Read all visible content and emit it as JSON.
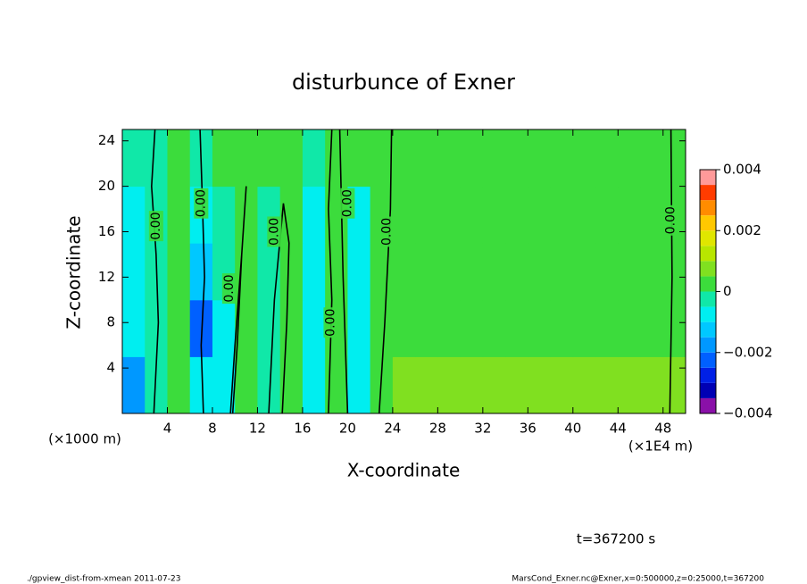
{
  "chart_data": {
    "type": "contour",
    "title": "disturbunce of Exner",
    "x_label": "X-coordinate",
    "y_label": "Z-coordinate",
    "x_unit": "(×1E4 m)",
    "y_unit": "(×1000 m)",
    "xlim": [
      0,
      50
    ],
    "ylim": [
      0,
      25
    ],
    "xticks": [
      4,
      8,
      12,
      16,
      20,
      24,
      28,
      32,
      36,
      40,
      44,
      48
    ],
    "yticks": [
      4,
      8,
      12,
      16,
      20,
      24
    ],
    "x": [
      1,
      3,
      5,
      7,
      9,
      11,
      13,
      15,
      17,
      19,
      21,
      23,
      25,
      27,
      29,
      31,
      33,
      35,
      37,
      39,
      41,
      43,
      45,
      47,
      49
    ],
    "z": [
      2.5,
      7.5,
      12.5,
      17.5,
      22.5
    ],
    "values": [
      [
        -0.0017,
        -0.0003,
        0.0002,
        -0.0008,
        -0.001,
        0.0002,
        -0.0004,
        0.0002,
        -0.0006,
        0.0002,
        -0.0007,
        0.0003,
        0.0006,
        0.0006,
        0.0006,
        0.0006,
        0.0006,
        0.0006,
        0.0006,
        0.0006,
        0.0006,
        0.0006,
        0.0006,
        0.0006,
        0.0006
      ],
      [
        -0.0008,
        -0.0003,
        0.0002,
        -0.0025,
        -0.0008,
        0.0002,
        -0.0004,
        0.0002,
        -0.0006,
        0.0002,
        -0.0007,
        0.0003,
        0.0003,
        0.0003,
        0.0003,
        0.0003,
        0.0003,
        0.0003,
        0.0003,
        0.0003,
        0.0003,
        0.0003,
        0.0003,
        0.0003,
        0.0003
      ],
      [
        -0.0007,
        -0.0003,
        0.0002,
        -0.0012,
        -0.0005,
        0.0002,
        -0.0004,
        0.0002,
        -0.0006,
        0.0002,
        -0.0007,
        0.0003,
        0.0003,
        0.0003,
        0.0003,
        0.0003,
        0.0003,
        0.0003,
        0.0003,
        0.0003,
        0.0003,
        0.0003,
        0.0003,
        0.0003,
        0.0003
      ],
      [
        -0.0006,
        -0.0003,
        0.0002,
        -0.0006,
        -0.0002,
        0.0002,
        -0.0002,
        0.0002,
        -0.0006,
        0.0002,
        -0.0007,
        0.0003,
        0.0003,
        0.0003,
        0.0003,
        0.0003,
        0.0003,
        0.0003,
        0.0003,
        0.0003,
        0.0003,
        0.0003,
        0.0003,
        0.0003,
        0.0003
      ],
      [
        -0.0002,
        -0.0003,
        0.0002,
        -0.0003,
        0.0002,
        0.0002,
        0.0002,
        0.0002,
        -0.0003,
        0.0002,
        0.0002,
        0.0003,
        0.0003,
        0.0003,
        0.0003,
        0.0003,
        0.0003,
        0.0003,
        0.0003,
        0.0003,
        0.0003,
        0.0003,
        0.0003,
        0.0003,
        0.0003
      ]
    ],
    "levels": [
      -0.004,
      -0.0035,
      -0.003,
      -0.0025,
      -0.002,
      -0.0015,
      -0.001,
      -0.0005,
      0,
      0.0005,
      0.001,
      0.0015,
      0.002,
      0.0025,
      0.003,
      0.0035,
      0.004
    ],
    "colors": [
      "#8a10a8",
      "#0000b4",
      "#0020e6",
      "#0060ff",
      "#0098ff",
      "#00c8ff",
      "#00eef0",
      "#10e8a8",
      "#3cdc3c",
      "#80e020",
      "#b8e600",
      "#e0e600",
      "#ffc800",
      "#ff8c00",
      "#ff3c00",
      "#ff9a9a"
    ],
    "colorbar_ticks": [
      {
        "value": -0.004,
        "label": "−0.004"
      },
      {
        "value": -0.002,
        "label": "−0.002"
      },
      0,
      0.002,
      0.004
    ],
    "contour_level": 0,
    "contour_lines": [
      {
        "x": [
          2.8,
          3.0,
          3.2,
          3.0,
          2.6,
          2.9
        ],
        "z": [
          0,
          4,
          8,
          14,
          20,
          25
        ]
      },
      {
        "x": [
          7.2,
          7.0,
          7.3,
          7.1,
          6.9
        ],
        "z": [
          0,
          6,
          12,
          19,
          25
        ]
      },
      {
        "x": [
          9.6,
          10.0,
          10.6,
          11.0,
          10.6,
          10.2,
          9.8
        ],
        "z": [
          0,
          6,
          14,
          20,
          14,
          6,
          0
        ]
      },
      {
        "x": [
          13.0,
          13.5,
          14.3,
          14.8,
          14.6,
          14.2
        ],
        "z": [
          0,
          10,
          18.5,
          15,
          8,
          0
        ]
      },
      {
        "x": [
          18.3,
          18.6,
          18.3,
          18.6
        ],
        "z": [
          0,
          10,
          18,
          25
        ]
      },
      {
        "x": [
          20.0,
          19.6,
          19.3
        ],
        "z": [
          0,
          12,
          25
        ]
      },
      {
        "x": [
          22.8,
          23.3,
          23.8,
          23.9
        ],
        "z": [
          0,
          8,
          18,
          25
        ]
      },
      {
        "x": [
          48.6,
          48.8,
          48.7
        ],
        "z": [
          0,
          12,
          25
        ]
      }
    ],
    "contour_labels": [
      {
        "x": 3.0,
        "z": 16.5,
        "text": "0.00"
      },
      {
        "x": 7.0,
        "z": 18.5,
        "text": "0.00"
      },
      {
        "x": 9.5,
        "z": 11,
        "text": "0.00"
      },
      {
        "x": 13.5,
        "z": 16,
        "text": "0.00"
      },
      {
        "x": 18.5,
        "z": 8,
        "text": "0.00"
      },
      {
        "x": 20.0,
        "z": 18.5,
        "text": "0.00"
      },
      {
        "x": 23.5,
        "z": 16,
        "text": "0.00"
      },
      {
        "x": 48.7,
        "z": 17,
        "text": "0.00"
      }
    ],
    "time_label": "t=367200 s",
    "footer_left": "./gpview_dist-from-xmean  2011-07-23",
    "footer_right": "MarsCond_Exner.nc@Exner,x=0:500000,z=0:25000,t=367200"
  }
}
